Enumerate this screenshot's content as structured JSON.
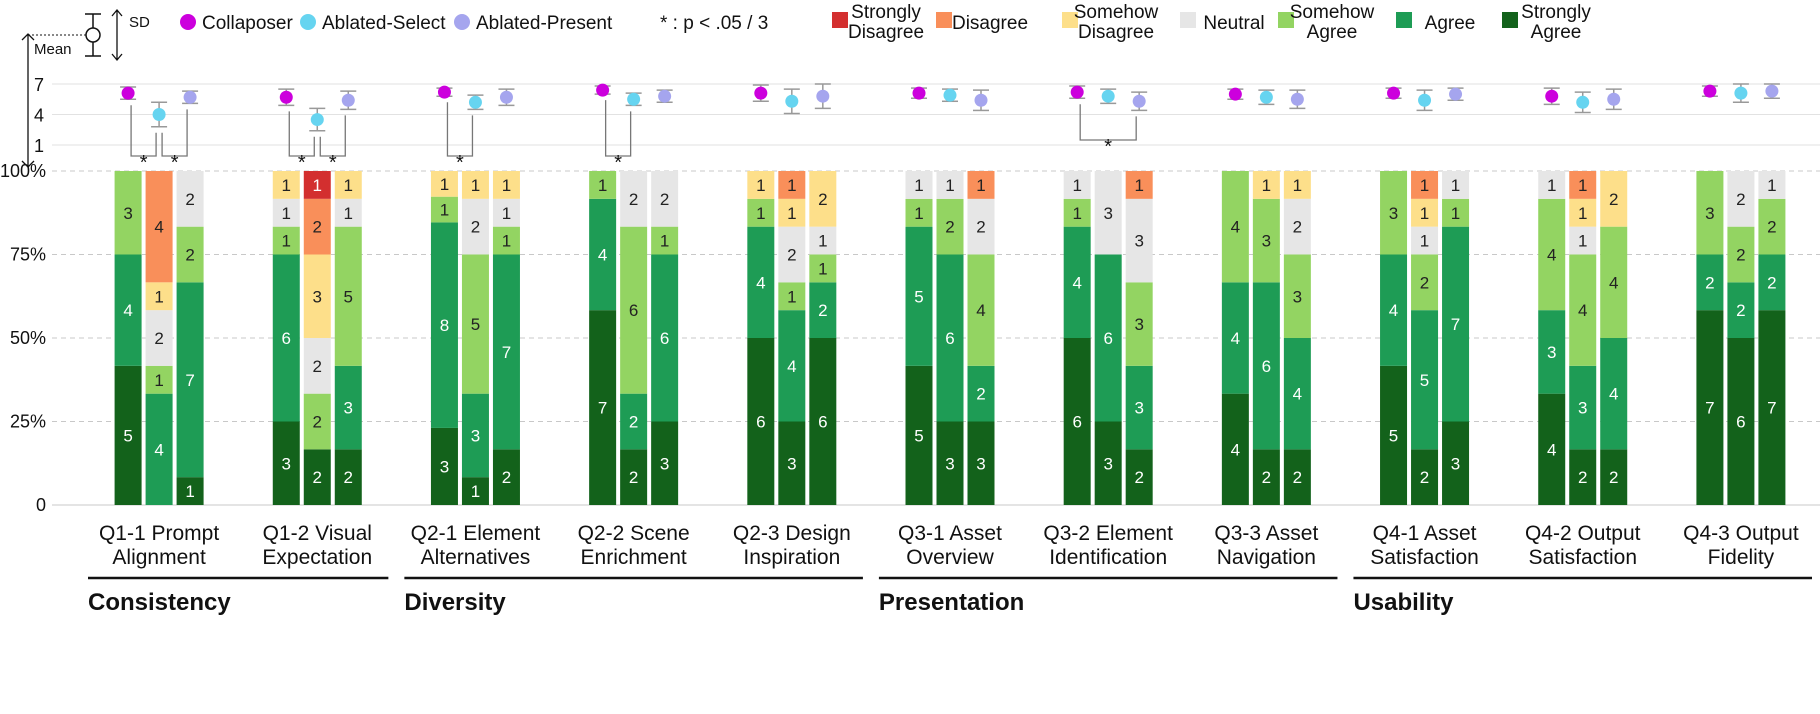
{
  "chart_data": {
    "type": "bar",
    "subtype": "stacked-percent-likert-with-mean-sd",
    "n": 12,
    "ylim": [
      0,
      100
    ],
    "y_tick_labels": [
      "0",
      "25%",
      "50%",
      "75%",
      "100%"
    ],
    "top_y_tick_labels": [
      "1",
      "4",
      "7"
    ],
    "mean_sd_ylim": [
      1,
      7
    ],
    "legend": {
      "conditions": [
        {
          "name": "Collaposer",
          "color": "#cc00dd"
        },
        {
          "name": "Ablated-Select",
          "color": "#66d4f0"
        },
        {
          "name": "Ablated-Present",
          "color": "#a5a5ee"
        }
      ],
      "mean_label": "Mean",
      "sd_label": "SD",
      "significance_note": "* : p < .05 / 3",
      "likert": [
        {
          "name": "Strongly Disagree",
          "lines": [
            "Strongly",
            "Disagree"
          ],
          "color": "#d32f2f"
        },
        {
          "name": "Disagree",
          "lines": [
            "Disagree"
          ],
          "color": "#f98f5a"
        },
        {
          "name": "Somehow Disagree",
          "lines": [
            "Somehow",
            "Disagree"
          ],
          "color": "#fddf8a"
        },
        {
          "name": "Neutral",
          "lines": [
            "Neutral"
          ],
          "color": "#e6e6e6"
        },
        {
          "name": "Somehow Agree",
          "lines": [
            "Somehow",
            "Agree"
          ],
          "color": "#93d462"
        },
        {
          "name": "Agree",
          "lines": [
            "Agree"
          ],
          "color": "#1e9c55"
        },
        {
          "name": "Strongly Agree",
          "lines": [
            "Strongly",
            "Agree"
          ],
          "color": "#13621b"
        }
      ]
    },
    "groups": [
      {
        "name": "Consistency",
        "questions": [
          0,
          1
        ]
      },
      {
        "name": "Diversity",
        "questions": [
          2,
          3,
          4
        ]
      },
      {
        "name": "Presentation",
        "questions": [
          5,
          6,
          7
        ]
      },
      {
        "name": "Usability",
        "questions": [
          8,
          9,
          10
        ]
      }
    ],
    "questions": [
      {
        "label": [
          "Q1-1 Prompt",
          "Alignment"
        ],
        "bars": [
          [
            0,
            0,
            0,
            0,
            3,
            4,
            5
          ],
          [
            0,
            4,
            1,
            2,
            1,
            4,
            0
          ],
          [
            0,
            0,
            0,
            2,
            2,
            7,
            1
          ]
        ],
        "mean_sd": [
          [
            6.1,
            0.6
          ],
          [
            4.0,
            1.2
          ],
          [
            5.7,
            0.6
          ]
        ],
        "sig": [
          [
            0,
            1
          ],
          [
            1,
            2
          ]
        ]
      },
      {
        "label": [
          "Q1-2 Visual",
          "Expectation"
        ],
        "bars": [
          [
            0,
            0,
            1,
            1,
            1,
            6,
            3
          ],
          [
            1,
            2,
            3,
            2,
            2,
            0,
            2
          ],
          [
            0,
            0,
            1,
            1,
            5,
            3,
            2
          ]
        ],
        "mean_sd": [
          [
            5.7,
            0.8
          ],
          [
            3.5,
            1.1
          ],
          [
            5.4,
            0.9
          ]
        ],
        "sig": [
          [
            0,
            1
          ],
          [
            1,
            2
          ]
        ]
      },
      {
        "label": [
          "Q2-1 Element",
          "Alternatives"
        ],
        "bars": [
          [
            0,
            0,
            1,
            0,
            1,
            8,
            3
          ],
          [
            0,
            0,
            1,
            2,
            5,
            3,
            1
          ],
          [
            0,
            0,
            1,
            1,
            1,
            7,
            2
          ]
        ],
        "mean_sd": [
          [
            6.2,
            0.4
          ],
          [
            5.2,
            0.7
          ],
          [
            5.7,
            0.8
          ]
        ],
        "sig": [
          [
            0,
            1
          ]
        ]
      },
      {
        "label": [
          "Q2-2 Scene",
          "Enrichment"
        ],
        "bars": [
          [
            0,
            0,
            0,
            0,
            1,
            4,
            7
          ],
          [
            0,
            0,
            0,
            2,
            6,
            2,
            2
          ],
          [
            0,
            0,
            0,
            2,
            1,
            6,
            3
          ]
        ],
        "mean_sd": [
          [
            6.4,
            0.4
          ],
          [
            5.5,
            0.6
          ],
          [
            5.8,
            0.6
          ]
        ],
        "sig": [
          [
            0,
            1
          ]
        ]
      },
      {
        "label": [
          "Q2-3 Design",
          "Inspiration"
        ],
        "bars": [
          [
            0,
            0,
            1,
            0,
            1,
            4,
            6
          ],
          [
            0,
            1,
            1,
            2,
            1,
            4,
            3
          ],
          [
            0,
            0,
            2,
            1,
            1,
            2,
            6
          ]
        ],
        "mean_sd": [
          [
            6.1,
            0.8
          ],
          [
            5.3,
            1.2
          ],
          [
            5.8,
            1.2
          ]
        ],
        "sig": []
      },
      {
        "label": [
          "Q3-1 Asset",
          "Overview"
        ],
        "bars": [
          [
            0,
            0,
            0,
            1,
            1,
            5,
            5
          ],
          [
            0,
            0,
            0,
            1,
            2,
            6,
            3
          ],
          [
            0,
            1,
            0,
            2,
            4,
            2,
            3
          ]
        ],
        "mean_sd": [
          [
            6.1,
            0.5
          ],
          [
            5.9,
            0.6
          ],
          [
            5.4,
            1.0
          ]
        ],
        "sig": []
      },
      {
        "label": [
          "Q3-2 Element",
          "Identification"
        ],
        "bars": [
          [
            0,
            0,
            0,
            1,
            1,
            4,
            6
          ],
          [
            0,
            0,
            0,
            3,
            0,
            6,
            3
          ],
          [
            0,
            1,
            0,
            3,
            3,
            3,
            2
          ]
        ],
        "mean_sd": [
          [
            6.2,
            0.6
          ],
          [
            5.8,
            0.7
          ],
          [
            5.3,
            0.9
          ]
        ],
        "sig": [
          [
            0,
            2
          ]
        ]
      },
      {
        "label": [
          "Q3-3 Asset",
          "Navigation"
        ],
        "bars": [
          [
            0,
            0,
            0,
            0,
            4,
            4,
            4
          ],
          [
            0,
            0,
            1,
            0,
            3,
            6,
            2
          ],
          [
            0,
            0,
            1,
            2,
            3,
            4,
            2
          ]
        ],
        "mean_sd": [
          [
            6.0,
            0.5
          ],
          [
            5.7,
            0.7
          ],
          [
            5.5,
            0.9
          ]
        ],
        "sig": []
      },
      {
        "label": [
          "Q4-1 Asset",
          "Satisfaction"
        ],
        "bars": [
          [
            0,
            0,
            0,
            0,
            3,
            4,
            5
          ],
          [
            0,
            1,
            1,
            1,
            2,
            5,
            2
          ],
          [
            0,
            0,
            0,
            1,
            1,
            7,
            3
          ]
        ],
        "mean_sd": [
          [
            6.1,
            0.5
          ],
          [
            5.4,
            1.0
          ],
          [
            6.0,
            0.6
          ]
        ],
        "sig": []
      },
      {
        "label": [
          "Q4-2 Output",
          "Satisfaction"
        ],
        "bars": [
          [
            0,
            0,
            0,
            1,
            4,
            3,
            4
          ],
          [
            0,
            1,
            1,
            1,
            4,
            3,
            2
          ],
          [
            0,
            0,
            2,
            0,
            4,
            4,
            2
          ]
        ],
        "mean_sd": [
          [
            5.8,
            0.8
          ],
          [
            5.2,
            1.0
          ],
          [
            5.5,
            1.0
          ]
        ],
        "sig": []
      },
      {
        "label": [
          "Q4-3 Output",
          "Fidelity"
        ],
        "bars": [
          [
            0,
            0,
            0,
            0,
            3,
            2,
            7
          ],
          [
            0,
            0,
            0,
            2,
            2,
            2,
            6
          ],
          [
            0,
            0,
            0,
            1,
            2,
            2,
            7
          ]
        ],
        "mean_sd": [
          [
            6.3,
            0.5
          ],
          [
            6.1,
            0.9
          ],
          [
            6.3,
            0.7
          ]
        ],
        "sig": []
      }
    ]
  }
}
